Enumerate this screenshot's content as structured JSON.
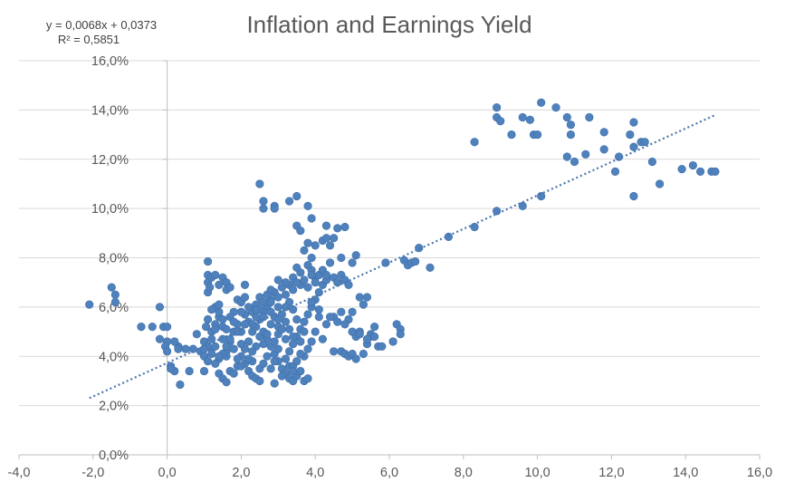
{
  "chart_data": {
    "type": "scatter",
    "title": "Inflation and Earnings Yield",
    "xlabel": "",
    "ylabel": "",
    "xlim": [
      -4,
      16
    ],
    "ylim": [
      0,
      16
    ],
    "x_ticks": [
      "-4,0",
      "-2,0",
      "0,0",
      "2,0",
      "4,0",
      "6,0",
      "8,0",
      "10,0",
      "12,0",
      "14,0",
      "16,0"
    ],
    "y_ticks": [
      "0,0%",
      "2,0%",
      "4,0%",
      "6,0%",
      "8,0%",
      "10,0%",
      "12,0%",
      "14,0%",
      "16,0%"
    ],
    "grid": "horizontal",
    "legend": "none",
    "marker_color": "#4f81bd",
    "trendline": {
      "type": "linear",
      "equation": "y = 0,0068x + 0,0373",
      "r_squared": "R² = 0,5851",
      "slope": 0.0068,
      "intercept": 0.0373,
      "x_range": [
        -2.1,
        14.8
      ],
      "color": "#4a76ad",
      "style": "dotted"
    },
    "points": [
      [
        -2.1,
        6.1
      ],
      [
        -1.5,
        6.8
      ],
      [
        -1.4,
        6.5
      ],
      [
        -1.4,
        6.2
      ],
      [
        -0.7,
        5.2
      ],
      [
        -0.4,
        5.2
      ],
      [
        -0.2,
        4.7
      ],
      [
        -0.2,
        6.0
      ],
      [
        -0.1,
        5.2
      ],
      [
        0.0,
        5.2
      ],
      [
        0.0,
        4.6
      ],
      [
        -0.05,
        4.4
      ],
      [
        0.0,
        4.2
      ],
      [
        0.1,
        3.6
      ],
      [
        0.2,
        3.4
      ],
      [
        0.1,
        3.5
      ],
      [
        0.3,
        4.4
      ],
      [
        0.3,
        4.3
      ],
      [
        0.2,
        4.6
      ],
      [
        0.35,
        2.85
      ],
      [
        0.5,
        4.3
      ],
      [
        0.6,
        3.4
      ],
      [
        0.7,
        4.3
      ],
      [
        0.8,
        4.9
      ],
      [
        0.9,
        4.2
      ],
      [
        1.0,
        3.4
      ],
      [
        1.0,
        4.6
      ],
      [
        1.05,
        5.2
      ],
      [
        1.1,
        7.85
      ],
      [
        1.1,
        7.3
      ],
      [
        1.1,
        7.0
      ],
      [
        1.1,
        6.6
      ],
      [
        1.15,
        6.8
      ],
      [
        1.2,
        7.2
      ],
      [
        1.3,
        7.3
      ],
      [
        1.4,
        6.9
      ],
      [
        1.5,
        7.2
      ],
      [
        1.6,
        7.0
      ],
      [
        1.6,
        6.7
      ],
      [
        1.7,
        6.8
      ],
      [
        1.0,
        4.0
      ],
      [
        1.1,
        3.8
      ],
      [
        1.2,
        4.3
      ],
      [
        1.3,
        4.4
      ],
      [
        1.2,
        5.0
      ],
      [
        1.3,
        5.3
      ],
      [
        1.4,
        5.6
      ],
      [
        1.5,
        5.2
      ],
      [
        1.5,
        4.7
      ],
      [
        1.6,
        4.2
      ],
      [
        1.4,
        3.3
      ],
      [
        1.5,
        3.1
      ],
      [
        1.6,
        2.95
      ],
      [
        1.7,
        3.4
      ],
      [
        1.8,
        3.3
      ],
      [
        1.9,
        3.6
      ],
      [
        1.4,
        3.9
      ],
      [
        1.6,
        4.0
      ],
      [
        1.7,
        4.6
      ],
      [
        1.8,
        5.0
      ],
      [
        1.9,
        5.3
      ],
      [
        1.8,
        5.8
      ],
      [
        1.9,
        6.3
      ],
      [
        2.0,
        6.2
      ],
      [
        2.1,
        6.4
      ],
      [
        2.1,
        6.9
      ],
      [
        2.1,
        5.7
      ],
      [
        2.2,
        5.4
      ],
      [
        2.3,
        5.0
      ],
      [
        2.2,
        4.6
      ],
      [
        2.1,
        4.3
      ],
      [
        2.0,
        4.0
      ],
      [
        2.1,
        3.7
      ],
      [
        2.2,
        3.4
      ],
      [
        2.3,
        3.2
      ],
      [
        2.4,
        3.1
      ],
      [
        2.5,
        3.0
      ],
      [
        2.3,
        3.8
      ],
      [
        2.4,
        4.4
      ],
      [
        2.5,
        4.8
      ],
      [
        2.5,
        11.0
      ],
      [
        2.6,
        10.3
      ],
      [
        2.6,
        10.0
      ],
      [
        2.9,
        10.1
      ],
      [
        2.9,
        10.0
      ],
      [
        3.3,
        10.3
      ],
      [
        3.5,
        10.5
      ],
      [
        3.8,
        10.1
      ],
      [
        3.9,
        9.6
      ],
      [
        3.5,
        9.3
      ],
      [
        3.6,
        9.1
      ],
      [
        4.3,
        9.3
      ],
      [
        4.6,
        9.2
      ],
      [
        4.8,
        9.25
      ],
      [
        3.8,
        8.6
      ],
      [
        3.7,
        8.3
      ],
      [
        3.9,
        8.0
      ],
      [
        4.0,
        8.5
      ],
      [
        4.2,
        8.7
      ],
      [
        4.3,
        8.8
      ],
      [
        4.4,
        8.5
      ],
      [
        4.5,
        8.8
      ],
      [
        4.7,
        8.0
      ],
      [
        4.4,
        7.8
      ],
      [
        4.2,
        7.4
      ],
      [
        4.0,
        7.2
      ],
      [
        3.9,
        7.5
      ],
      [
        3.8,
        7.7
      ],
      [
        3.6,
        7.4
      ],
      [
        3.5,
        7.6
      ],
      [
        3.4,
        7.2
      ],
      [
        3.3,
        6.9
      ],
      [
        3.2,
        7.0
      ],
      [
        3.0,
        7.1
      ],
      [
        2.9,
        6.6
      ],
      [
        2.8,
        6.3
      ],
      [
        2.7,
        6.0
      ],
      [
        2.6,
        5.8
      ],
      [
        2.5,
        5.5
      ],
      [
        2.4,
        5.2
      ],
      [
        2.6,
        5.0
      ],
      [
        2.7,
        4.7
      ],
      [
        2.8,
        4.4
      ],
      [
        2.9,
        4.1
      ],
      [
        3.0,
        3.8
      ],
      [
        3.1,
        3.5
      ],
      [
        3.2,
        3.3
      ],
      [
        3.3,
        3.1
      ],
      [
        3.4,
        3.0
      ],
      [
        3.5,
        3.2
      ],
      [
        3.6,
        3.4
      ],
      [
        3.7,
        3.0
      ],
      [
        3.8,
        3.1
      ],
      [
        3.2,
        3.9
      ],
      [
        3.3,
        4.2
      ],
      [
        3.4,
        4.5
      ],
      [
        3.5,
        4.8
      ],
      [
        3.6,
        5.1
      ],
      [
        3.7,
        5.4
      ],
      [
        3.8,
        5.7
      ],
      [
        3.9,
        6.0
      ],
      [
        4.0,
        6.3
      ],
      [
        4.1,
        6.6
      ],
      [
        4.2,
        6.9
      ],
      [
        4.3,
        7.1
      ],
      [
        4.5,
        7.2
      ],
      [
        4.6,
        7.0
      ],
      [
        4.7,
        7.3
      ],
      [
        4.8,
        7.1
      ],
      [
        4.9,
        6.9
      ],
      [
        5.0,
        7.8
      ],
      [
        5.1,
        8.1
      ],
      [
        5.2,
        6.4
      ],
      [
        5.3,
        6.1
      ],
      [
        5.4,
        6.4
      ],
      [
        5.0,
        5.8
      ],
      [
        4.9,
        5.5
      ],
      [
        4.7,
        5.8
      ],
      [
        4.5,
        5.6
      ],
      [
        4.3,
        5.3
      ],
      [
        4.1,
        5.6
      ],
      [
        4.0,
        5.0
      ],
      [
        3.9,
        4.6
      ],
      [
        3.8,
        4.3
      ],
      [
        3.7,
        4.0
      ],
      [
        4.2,
        4.7
      ],
      [
        4.5,
        4.2
      ],
      [
        4.7,
        4.2
      ],
      [
        4.8,
        4.1
      ],
      [
        4.9,
        4.0
      ],
      [
        5.0,
        4.1
      ],
      [
        5.1,
        3.9
      ],
      [
        5.3,
        4.1
      ],
      [
        5.4,
        4.5
      ],
      [
        5.5,
        4.9
      ],
      [
        5.6,
        5.2
      ],
      [
        5.7,
        4.4
      ],
      [
        5.5,
        4.8
      ],
      [
        5.2,
        5.0
      ],
      [
        5.1,
        4.8
      ],
      [
        2.9,
        2.9
      ],
      [
        3.3,
        3.6
      ],
      [
        3.4,
        3.6
      ],
      [
        2.0,
        5.0
      ],
      [
        2.1,
        5.3
      ],
      [
        2.3,
        5.8
      ],
      [
        2.4,
        6.1
      ],
      [
        2.5,
        6.4
      ],
      [
        2.7,
        6.5
      ],
      [
        2.8,
        6.2
      ],
      [
        3.0,
        6.0
      ],
      [
        3.1,
        5.7
      ],
      [
        3.2,
        5.4
      ],
      [
        3.3,
        5.1
      ],
      [
        3.4,
        4.8
      ],
      [
        2.8,
        5.3
      ],
      [
        2.9,
        5.6
      ],
      [
        3.0,
        5.2
      ],
      [
        2.7,
        4.9
      ],
      [
        2.6,
        4.5
      ],
      [
        2.3,
        4.2
      ],
      [
        2.2,
        3.9
      ],
      [
        2.0,
        3.6
      ],
      [
        1.9,
        3.9
      ],
      [
        1.8,
        4.3
      ],
      [
        1.7,
        4.7
      ],
      [
        1.6,
        5.1
      ],
      [
        1.5,
        5.5
      ],
      [
        1.4,
        5.8
      ],
      [
        1.3,
        6.0
      ],
      [
        1.7,
        5.6
      ],
      [
        1.9,
        5.0
      ],
      [
        2.0,
        4.5
      ],
      [
        2.5,
        3.5
      ],
      [
        2.6,
        3.7
      ],
      [
        2.7,
        4.0
      ],
      [
        2.9,
        4.6
      ],
      [
        3.0,
        4.9
      ],
      [
        3.1,
        5.1
      ],
      [
        3.2,
        4.7
      ],
      [
        3.0,
        4.3
      ],
      [
        2.9,
        3.8
      ],
      [
        2.8,
        3.5
      ],
      [
        3.1,
        3.2
      ],
      [
        3.4,
        3.4
      ],
      [
        3.5,
        3.8
      ],
      [
        3.6,
        4.1
      ],
      [
        3.6,
        4.6
      ],
      [
        3.7,
        5.0
      ],
      [
        3.5,
        5.5
      ],
      [
        3.4,
        5.9
      ],
      [
        3.3,
        6.2
      ],
      [
        3.2,
        6.5
      ],
      [
        3.1,
        6.8
      ],
      [
        3.0,
        6.4
      ],
      [
        2.8,
        6.7
      ],
      [
        2.6,
        6.2
      ],
      [
        2.5,
        5.9
      ],
      [
        2.4,
        5.6
      ],
      [
        2.3,
        5.3
      ],
      [
        1.6,
        4.4
      ],
      [
        1.5,
        4.1
      ],
      [
        1.4,
        4.0
      ],
      [
        1.3,
        3.7
      ],
      [
        1.2,
        4.1
      ],
      [
        1.1,
        4.4
      ],
      [
        1.0,
        4.3
      ],
      [
        1.2,
        4.7
      ],
      [
        1.3,
        5.1
      ],
      [
        1.1,
        5.5
      ],
      [
        1.2,
        5.9
      ],
      [
        1.4,
        6.1
      ],
      [
        1.8,
        5.4
      ],
      [
        2.0,
        5.8
      ],
      [
        2.2,
        6.0
      ],
      [
        2.4,
        5.9
      ],
      [
        2.6,
        5.6
      ],
      [
        2.8,
        5.8
      ],
      [
        3.0,
        5.5
      ],
      [
        3.2,
        6.0
      ],
      [
        3.6,
        6.9
      ],
      [
        3.7,
        7.1
      ],
      [
        3.8,
        6.8
      ],
      [
        4.0,
        7.0
      ],
      [
        4.1,
        7.3
      ],
      [
        4.2,
        7.5
      ],
      [
        4.3,
        7.3
      ],
      [
        3.9,
        7.3
      ],
      [
        3.5,
        7.0
      ],
      [
        3.4,
        6.7
      ],
      [
        3.9,
        6.2
      ],
      [
        4.1,
        5.9
      ],
      [
        4.4,
        5.6
      ],
      [
        4.6,
        5.4
      ],
      [
        4.8,
        5.3
      ],
      [
        5.0,
        5.0
      ],
      [
        5.2,
        4.9
      ],
      [
        5.4,
        4.7
      ],
      [
        5.6,
        4.8
      ],
      [
        5.8,
        4.4
      ],
      [
        5.9,
        7.8
      ],
      [
        6.1,
        4.6
      ],
      [
        6.2,
        5.3
      ],
      [
        6.3,
        5.1
      ],
      [
        6.3,
        4.9
      ],
      [
        6.4,
        7.9
      ],
      [
        6.5,
        7.7
      ],
      [
        6.6,
        7.8
      ],
      [
        6.7,
        7.85
      ],
      [
        6.8,
        8.4
      ],
      [
        7.1,
        7.6
      ],
      [
        7.6,
        8.85
      ],
      [
        8.3,
        9.25
      ],
      [
        8.3,
        12.7
      ],
      [
        8.9,
        9.9
      ],
      [
        8.9,
        14.1
      ],
      [
        8.9,
        13.7
      ],
      [
        9.0,
        13.55
      ],
      [
        9.3,
        13.0
      ],
      [
        9.6,
        13.7
      ],
      [
        9.6,
        10.1
      ],
      [
        9.8,
        13.6
      ],
      [
        9.9,
        13.0
      ],
      [
        10.0,
        13.0
      ],
      [
        10.1,
        10.5
      ],
      [
        10.1,
        14.3
      ],
      [
        10.5,
        14.1
      ],
      [
        10.8,
        13.7
      ],
      [
        10.8,
        12.1
      ],
      [
        10.9,
        13.4
      ],
      [
        10.9,
        13.0
      ],
      [
        11.0,
        11.9
      ],
      [
        11.3,
        12.2
      ],
      [
        11.4,
        13.7
      ],
      [
        11.8,
        13.1
      ],
      [
        11.8,
        12.4
      ],
      [
        12.1,
        11.5
      ],
      [
        12.2,
        12.1
      ],
      [
        12.5,
        13.0
      ],
      [
        12.6,
        12.5
      ],
      [
        12.6,
        13.5
      ],
      [
        12.6,
        10.5
      ],
      [
        12.8,
        12.7
      ],
      [
        12.9,
        12.7
      ],
      [
        13.1,
        11.9
      ],
      [
        13.3,
        11.0
      ],
      [
        13.9,
        11.6
      ],
      [
        14.2,
        11.75
      ],
      [
        14.4,
        11.5
      ],
      [
        14.7,
        11.5
      ],
      [
        14.8,
        11.5
      ]
    ]
  }
}
